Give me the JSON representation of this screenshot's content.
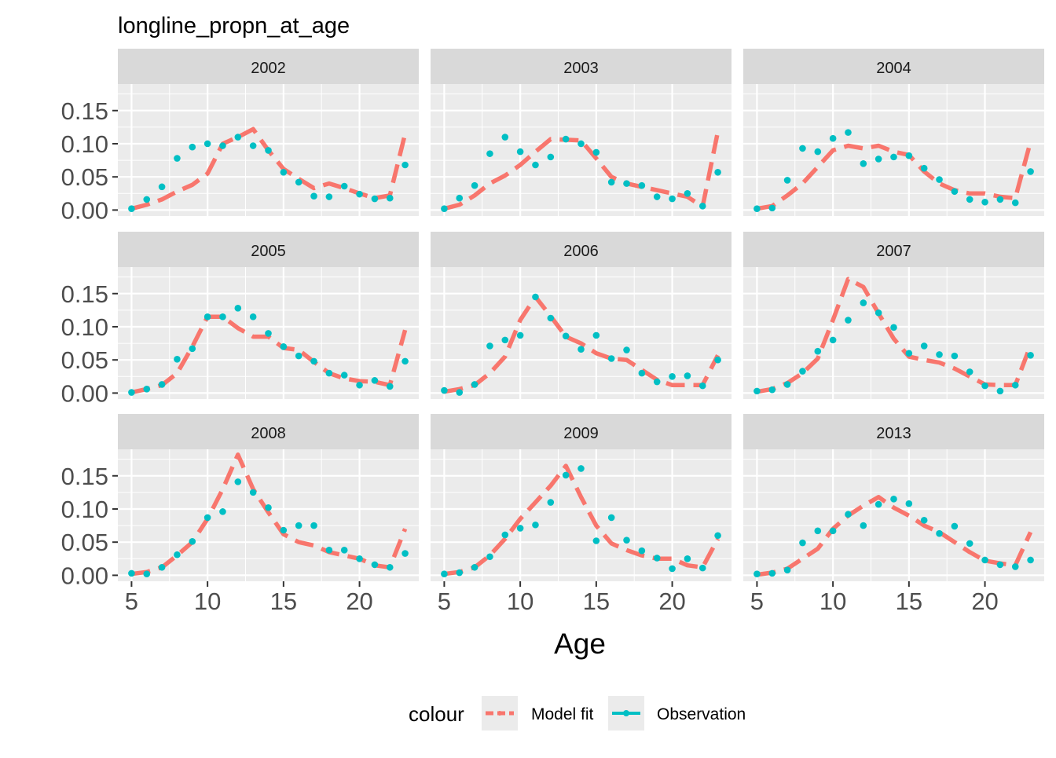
{
  "chart_data": {
    "type": "line",
    "title": "longline_propn_at_age",
    "xlabel": "Age",
    "ylabel": "",
    "xlim": [
      4.1,
      23.9
    ],
    "ylim": [
      -0.009,
      0.19
    ],
    "x_ticks": [
      5,
      10,
      15,
      20
    ],
    "x_tick_labels": [
      "5",
      "10",
      "15",
      "20"
    ],
    "y_ticks": [
      0,
      0.05,
      0.1,
      0.15
    ],
    "y_tick_labels": [
      "0.00",
      "0.05",
      "0.10",
      "0.15"
    ],
    "grid": true,
    "facet_layout": "3x3",
    "legend": {
      "title": "colour",
      "position": "bottom",
      "entries": [
        {
          "label": "Model fit",
          "color": "#F8766D",
          "style": "dashed-line"
        },
        {
          "label": "Observation",
          "color": "#00BFC4",
          "style": "points"
        }
      ]
    },
    "panels": [
      {
        "label": "2002",
        "model_fit": {
          "x": [
            5,
            6,
            7,
            8,
            9,
            10,
            11,
            12,
            13,
            14,
            15,
            16,
            17,
            18,
            19,
            20,
            21,
            22,
            23
          ],
          "y": [
            0.002,
            0.008,
            0.016,
            0.028,
            0.038,
            0.055,
            0.1,
            0.11,
            0.122,
            0.09,
            0.062,
            0.047,
            0.033,
            0.04,
            0.033,
            0.025,
            0.018,
            0.022,
            0.115
          ]
        },
        "observation": {
          "x": [
            5,
            6,
            7,
            8,
            9,
            10,
            11,
            12,
            13,
            14,
            15,
            16,
            17,
            18,
            19,
            20,
            21,
            22,
            23
          ],
          "y": [
            0.002,
            0.016,
            0.035,
            0.078,
            0.095,
            0.1,
            0.097,
            0.11,
            0.097,
            0.09,
            0.057,
            0.042,
            0.021,
            0.02,
            0.036,
            0.024,
            0.017,
            0.018,
            0.068
          ]
        }
      },
      {
        "label": "2003",
        "model_fit": {
          "x": [
            5,
            6,
            7,
            8,
            9,
            10,
            11,
            12,
            13,
            14,
            15,
            16,
            17,
            18,
            19,
            20,
            21,
            22,
            23
          ],
          "y": [
            0.002,
            0.008,
            0.022,
            0.04,
            0.052,
            0.068,
            0.088,
            0.107,
            0.106,
            0.105,
            0.078,
            0.05,
            0.04,
            0.035,
            0.03,
            0.025,
            0.02,
            0.005,
            0.118
          ]
        },
        "observation": {
          "x": [
            5,
            6,
            7,
            8,
            9,
            10,
            11,
            12,
            13,
            14,
            15,
            16,
            17,
            18,
            19,
            20,
            21,
            22,
            23
          ],
          "y": [
            0.002,
            0.018,
            0.037,
            0.085,
            0.11,
            0.088,
            0.068,
            0.08,
            0.107,
            0.1,
            0.087,
            0.042,
            0.04,
            0.037,
            0.02,
            0.017,
            0.025,
            0.006,
            0.057
          ]
        }
      },
      {
        "label": "2004",
        "model_fit": {
          "x": [
            5,
            6,
            7,
            8,
            9,
            10,
            11,
            12,
            13,
            14,
            15,
            16,
            17,
            18,
            19,
            20,
            21,
            22,
            23
          ],
          "y": [
            0.002,
            0.006,
            0.022,
            0.04,
            0.065,
            0.09,
            0.097,
            0.093,
            0.097,
            0.088,
            0.083,
            0.058,
            0.04,
            0.03,
            0.025,
            0.025,
            0.02,
            0.018,
            0.103
          ]
        },
        "observation": {
          "x": [
            5,
            6,
            7,
            8,
            9,
            10,
            11,
            12,
            13,
            14,
            15,
            16,
            17,
            18,
            19,
            20,
            21,
            22,
            23
          ],
          "y": [
            0.002,
            0.003,
            0.045,
            0.093,
            0.088,
            0.108,
            0.117,
            0.07,
            0.077,
            0.08,
            0.082,
            0.063,
            0.046,
            0.028,
            0.016,
            0.012,
            0.016,
            0.011,
            0.058
          ]
        }
      },
      {
        "label": "2005",
        "model_fit": {
          "x": [
            5,
            6,
            7,
            8,
            9,
            10,
            11,
            12,
            13,
            14,
            15,
            16,
            17,
            18,
            19,
            20,
            21,
            22,
            23
          ],
          "y": [
            0.001,
            0.006,
            0.012,
            0.03,
            0.07,
            0.115,
            0.115,
            0.098,
            0.085,
            0.085,
            0.068,
            0.065,
            0.047,
            0.03,
            0.022,
            0.018,
            0.017,
            0.012,
            0.095
          ]
        },
        "observation": {
          "x": [
            5,
            6,
            7,
            8,
            9,
            10,
            11,
            12,
            13,
            14,
            15,
            16,
            17,
            18,
            19,
            20,
            21,
            22,
            23
          ],
          "y": [
            0.001,
            0.006,
            0.013,
            0.051,
            0.067,
            0.115,
            0.115,
            0.128,
            0.115,
            0.09,
            0.07,
            0.056,
            0.048,
            0.03,
            0.027,
            0.012,
            0.019,
            0.01,
            0.048
          ]
        }
      },
      {
        "label": "2006",
        "model_fit": {
          "x": [
            5,
            6,
            7,
            8,
            9,
            10,
            11,
            12,
            13,
            14,
            15,
            16,
            17,
            18,
            19,
            20,
            21,
            22,
            23
          ],
          "y": [
            0.002,
            0.006,
            0.012,
            0.03,
            0.055,
            0.11,
            0.145,
            0.116,
            0.085,
            0.075,
            0.06,
            0.052,
            0.05,
            0.035,
            0.02,
            0.012,
            0.012,
            0.012,
            0.057
          ]
        },
        "observation": {
          "x": [
            5,
            6,
            7,
            8,
            9,
            10,
            11,
            12,
            13,
            14,
            15,
            16,
            17,
            18,
            19,
            20,
            21,
            22,
            23
          ],
          "y": [
            0.004,
            0.001,
            0.013,
            0.071,
            0.08,
            0.087,
            0.145,
            0.113,
            0.086,
            0.066,
            0.087,
            0.052,
            0.065,
            0.03,
            0.017,
            0.025,
            0.026,
            0.011,
            0.05
          ]
        }
      },
      {
        "label": "2007",
        "model_fit": {
          "x": [
            5,
            6,
            7,
            8,
            9,
            10,
            11,
            12,
            13,
            14,
            15,
            16,
            17,
            18,
            19,
            20,
            21,
            22,
            23
          ],
          "y": [
            0.002,
            0.006,
            0.015,
            0.03,
            0.052,
            0.11,
            0.172,
            0.16,
            0.12,
            0.082,
            0.055,
            0.05,
            0.046,
            0.037,
            0.025,
            0.013,
            0.012,
            0.012,
            0.072
          ]
        },
        "observation": {
          "x": [
            5,
            6,
            7,
            8,
            9,
            10,
            11,
            12,
            13,
            14,
            15,
            16,
            17,
            18,
            19,
            20,
            21,
            22,
            23
          ],
          "y": [
            0.003,
            0.005,
            0.013,
            0.033,
            0.063,
            0.08,
            0.11,
            0.136,
            0.121,
            0.099,
            0.06,
            0.071,
            0.058,
            0.056,
            0.032,
            0.011,
            0.003,
            0.012,
            0.057
          ]
        }
      },
      {
        "label": "2008",
        "model_fit": {
          "x": [
            5,
            6,
            7,
            8,
            9,
            10,
            11,
            12,
            13,
            14,
            15,
            16,
            17,
            18,
            19,
            20,
            21,
            22,
            23
          ],
          "y": [
            0.002,
            0.005,
            0.012,
            0.03,
            0.05,
            0.085,
            0.13,
            0.182,
            0.13,
            0.095,
            0.062,
            0.05,
            0.045,
            0.035,
            0.03,
            0.025,
            0.015,
            0.012,
            0.07
          ]
        },
        "observation": {
          "x": [
            5,
            6,
            7,
            8,
            9,
            10,
            11,
            12,
            13,
            14,
            15,
            16,
            17,
            18,
            19,
            20,
            21,
            22,
            23
          ],
          "y": [
            0.003,
            0.002,
            0.012,
            0.031,
            0.051,
            0.087,
            0.096,
            0.141,
            0.125,
            0.102,
            0.068,
            0.075,
            0.075,
            0.038,
            0.038,
            0.025,
            0.016,
            0.012,
            0.033
          ]
        }
      },
      {
        "label": "2009",
        "model_fit": {
          "x": [
            5,
            6,
            7,
            8,
            9,
            10,
            11,
            12,
            13,
            14,
            15,
            16,
            17,
            18,
            19,
            20,
            21,
            22,
            23
          ],
          "y": [
            0.002,
            0.005,
            0.012,
            0.03,
            0.055,
            0.085,
            0.11,
            0.135,
            0.165,
            0.118,
            0.075,
            0.048,
            0.038,
            0.03,
            0.025,
            0.025,
            0.015,
            0.012,
            0.055
          ]
        },
        "observation": {
          "x": [
            5,
            6,
            7,
            8,
            9,
            10,
            11,
            12,
            13,
            14,
            15,
            16,
            17,
            18,
            19,
            20,
            21,
            22,
            23
          ],
          "y": [
            0.002,
            0.004,
            0.012,
            0.028,
            0.061,
            0.071,
            0.076,
            0.11,
            0.151,
            0.161,
            0.052,
            0.087,
            0.053,
            0.037,
            0.026,
            0.01,
            0.025,
            0.011,
            0.06
          ]
        }
      },
      {
        "label": "2013",
        "model_fit": {
          "x": [
            5,
            6,
            7,
            8,
            9,
            10,
            11,
            12,
            13,
            14,
            15,
            16,
            17,
            18,
            19,
            20,
            21,
            22,
            23
          ],
          "y": [
            0.001,
            0.004,
            0.01,
            0.025,
            0.04,
            0.07,
            0.09,
            0.105,
            0.118,
            0.102,
            0.09,
            0.075,
            0.065,
            0.05,
            0.035,
            0.022,
            0.018,
            0.015,
            0.065
          ]
        },
        "observation": {
          "x": [
            5,
            6,
            7,
            8,
            9,
            10,
            11,
            12,
            13,
            14,
            15,
            16,
            17,
            18,
            19,
            20,
            21,
            22,
            23
          ],
          "y": [
            0.002,
            0.003,
            0.008,
            0.049,
            0.067,
            0.067,
            0.092,
            0.075,
            0.107,
            0.115,
            0.108,
            0.083,
            0.063,
            0.074,
            0.048,
            0.023,
            0.016,
            0.013,
            0.023
          ]
        }
      }
    ]
  }
}
